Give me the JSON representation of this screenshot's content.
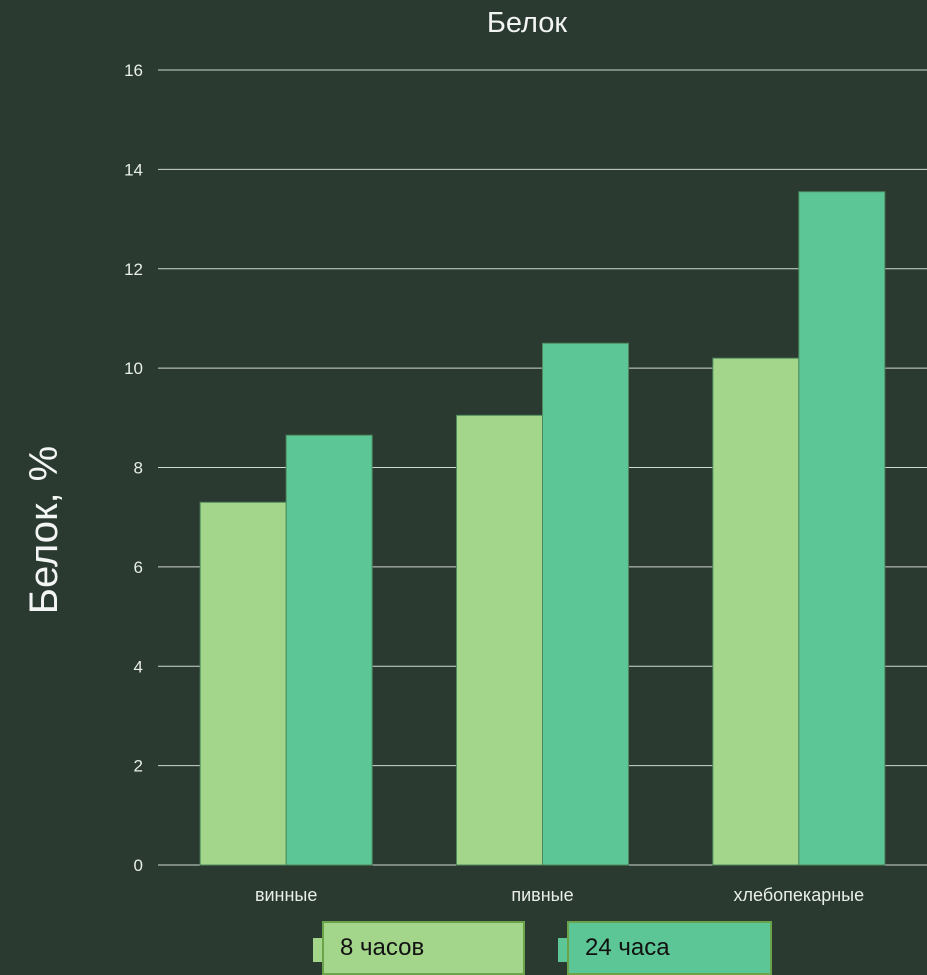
{
  "chart_data": {
    "type": "bar",
    "title": "Белок",
    "xlabel": "",
    "ylabel": "Белок, %",
    "categories": [
      "винные",
      "пивные",
      "хлебопекарные"
    ],
    "series": [
      {
        "name": "8 часов",
        "values": [
          7.3,
          9.05,
          10.2
        ],
        "color": "#a3d68b"
      },
      {
        "name": "24 часа",
        "values": [
          8.65,
          10.5,
          13.55
        ],
        "color": "#5cc696"
      }
    ],
    "yticks": [
      "0",
      "2",
      "4",
      "6",
      "8",
      "10",
      "12",
      "14",
      "16"
    ],
    "ylim": [
      0,
      16
    ],
    "grid": true,
    "legend_position": "bottom"
  }
}
